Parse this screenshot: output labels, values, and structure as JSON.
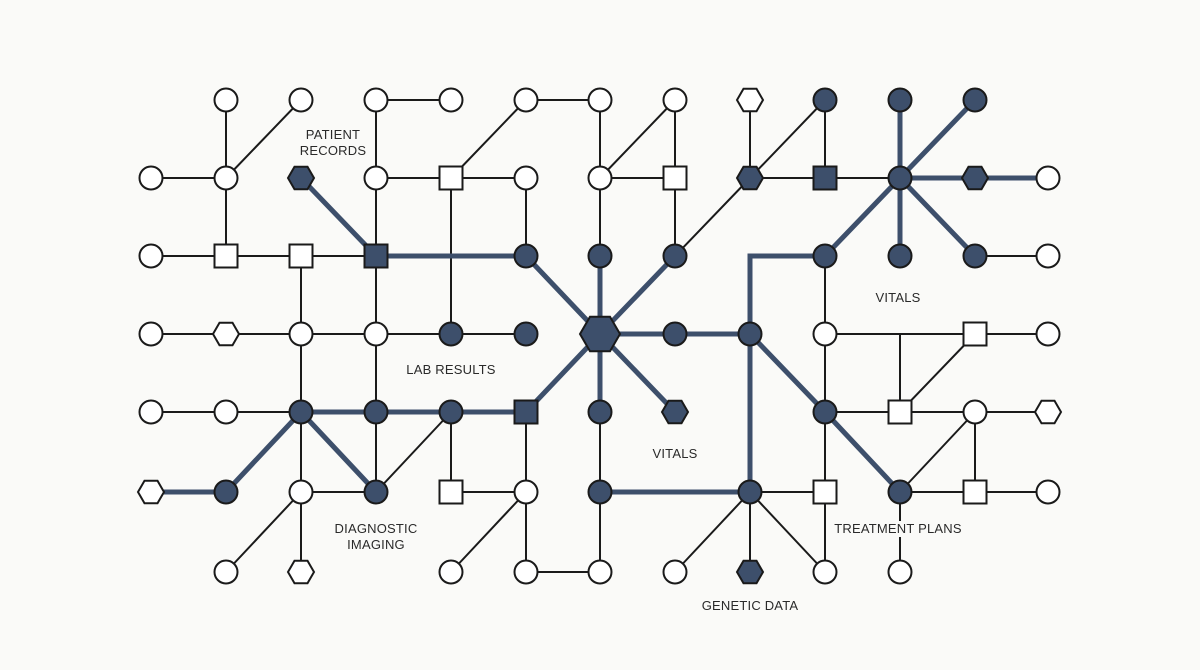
{
  "labels": {
    "patient_records": "PATIENT\nRECORDS",
    "lab_results": "LAB RESULTS",
    "diagnostic_imaging": "DIAGNOSTIC\nIMAGING",
    "vitals_center": "VITALS",
    "vitals_right": "VITALS",
    "genetic_data": "GENETIC DATA",
    "treatment_plans": "TREATMENT PLANS"
  },
  "colors": {
    "background": "#fafaf8",
    "highlight": "#3d4f6b",
    "outline": "#1a1a1a",
    "hollow_fill": "#ffffff"
  },
  "node_shapes": [
    "circle",
    "square",
    "hexagon"
  ]
}
